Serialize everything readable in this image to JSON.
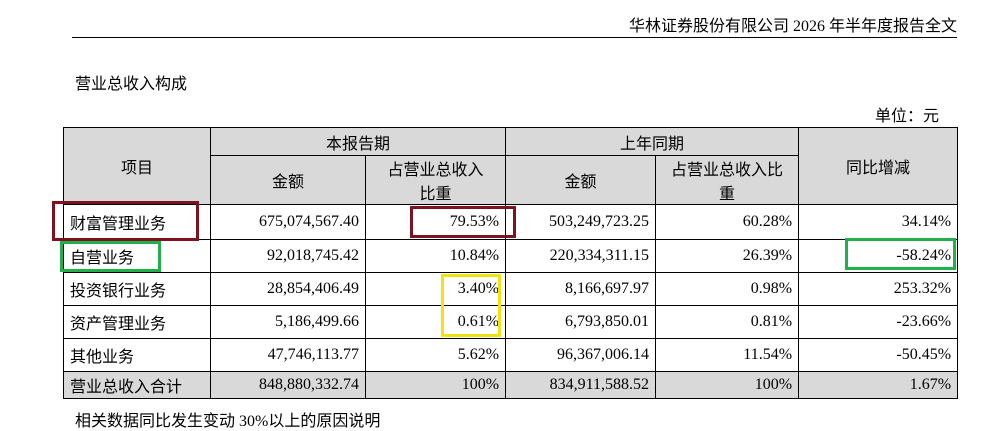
{
  "header": {
    "title": "华林证券股份有限公司 2026 年半年度报告全文"
  },
  "section_title": "营业总收入构成",
  "unit": "单位：元",
  "table": {
    "headers": {
      "item": "项目",
      "current": "本报告期",
      "previous": "上年同期",
      "change": "同比增减"
    },
    "subheaders": [
      "金额",
      "占营业总收入比重",
      "金额",
      "占营业总收入比重"
    ],
    "rows": [
      [
        "财富管理业务",
        "675,074,567.40",
        "79.53%",
        "503,249,723.25",
        "60.28%",
        "34.14%"
      ],
      [
        "自营业务",
        "92,018,745.42",
        "10.84%",
        "220,334,311.15",
        "26.39%",
        "-58.24%"
      ],
      [
        "投资银行业务",
        "28,854,406.49",
        "3.40%",
        "8,166,697.97",
        "0.98%",
        "253.32%"
      ],
      [
        "资产管理业务",
        "5,186,499.66",
        "0.61%",
        "6,793,850.01",
        "0.81%",
        "-23.66%"
      ],
      [
        "其他业务",
        "47,746,113.77",
        "5.62%",
        "96,367,006.14",
        "11.54%",
        "-50.45%"
      ],
      [
        "营业总收入合计",
        "848,880,332.74",
        "100%",
        "834,911,588.52",
        "100%",
        "1.67%"
      ]
    ]
  },
  "note": "相关数据同比发生变动 30%以上的原因说明"
}
